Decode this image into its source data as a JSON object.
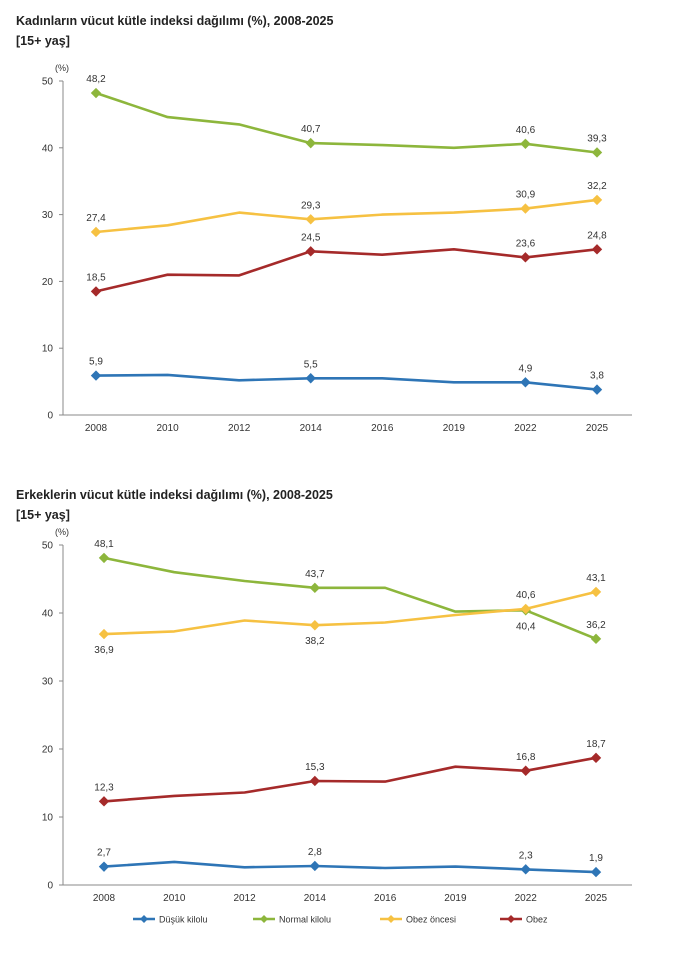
{
  "chart_data": [
    {
      "type": "line",
      "title": "Kadınların vücut kütle indeksi dağılımı (%), 2008-2025",
      "subtitle": "[15+ yaş]",
      "ylabel": "(%)",
      "ylim": [
        0,
        50
      ],
      "yticks": [
        0,
        10,
        20,
        30,
        40,
        50
      ],
      "categories": [
        "2008",
        "2010",
        "2012",
        "2014",
        "2016",
        "2019",
        "2022",
        "2025"
      ],
      "series": [
        {
          "name": "Düşük kilolu",
          "color": "#2e75b6",
          "values": [
            5.9,
            6.0,
            5.2,
            5.5,
            5.5,
            4.9,
            4.9,
            3.8
          ],
          "labels": [
            "5,9",
            "",
            "",
            "5,5",
            "",
            "",
            "4,9",
            "3,8"
          ],
          "label_pos": "above"
        },
        {
          "name": "Normal kilolu",
          "color": "#8db63c",
          "values": [
            48.2,
            44.6,
            43.5,
            40.7,
            40.4,
            40.0,
            40.6,
            39.3
          ],
          "labels": [
            "48,2",
            "",
            "",
            "40,7",
            "",
            "",
            "40,6",
            "39,3"
          ],
          "label_pos": "above"
        },
        {
          "name": "Obez öncesi",
          "color": "#f6c142",
          "values": [
            27.4,
            28.4,
            30.3,
            29.3,
            30.0,
            30.3,
            30.9,
            32.2
          ],
          "labels": [
            "27,4",
            "",
            "",
            "29,3",
            "",
            "",
            "30,9",
            "32,2"
          ],
          "label_pos": "above"
        },
        {
          "name": "Obez",
          "color": "#a52a2a",
          "values": [
            18.5,
            21.0,
            20.9,
            24.5,
            24.0,
            24.8,
            23.6,
            24.8
          ],
          "labels": [
            "18,5",
            "",
            "",
            "24,5",
            "",
            "",
            "23,6",
            "24,8"
          ],
          "label_pos": "above"
        }
      ]
    },
    {
      "type": "line",
      "title": "Erkeklerin vücut kütle indeksi dağılımı (%), 2008-2025",
      "subtitle": "[15+ yaş]",
      "ylabel": "(%)",
      "ylim": [
        0,
        50
      ],
      "yticks": [
        0,
        10,
        20,
        30,
        40,
        50
      ],
      "categories": [
        "2008",
        "2010",
        "2012",
        "2014",
        "2016",
        "2019",
        "2022",
        "2025"
      ],
      "series": [
        {
          "name": "Düşük kilolu",
          "color": "#2e75b6",
          "values": [
            2.7,
            3.4,
            2.6,
            2.8,
            2.5,
            2.7,
            2.3,
            1.9
          ],
          "labels": [
            "2,7",
            "",
            "",
            "2,8",
            "",
            "",
            "2,3",
            "1,9"
          ],
          "label_pos": "above"
        },
        {
          "name": "Normal kilolu",
          "color": "#8db63c",
          "values": [
            48.1,
            46.0,
            44.7,
            43.7,
            43.7,
            40.2,
            40.4,
            36.2
          ],
          "labels": [
            "48,1",
            "",
            "",
            "43,7",
            "",
            "",
            "40,4",
            "36,2"
          ],
          "label_pos": [
            "above",
            "",
            "",
            "above",
            "",
            "",
            "below",
            "above"
          ]
        },
        {
          "name": "Obez öncesi",
          "color": "#f6c142",
          "values": [
            36.9,
            37.3,
            38.9,
            38.2,
            38.6,
            39.7,
            40.6,
            43.1
          ],
          "labels": [
            "36,9",
            "",
            "",
            "38,2",
            "",
            "",
            "40,6",
            "43,1"
          ],
          "label_pos": [
            "below",
            "",
            "",
            "below",
            "",
            "",
            "above",
            "above"
          ]
        },
        {
          "name": "Obez",
          "color": "#a52a2a",
          "values": [
            12.3,
            13.1,
            13.6,
            15.3,
            15.2,
            17.4,
            16.8,
            18.7
          ],
          "labels": [
            "12,3",
            "",
            "",
            "15,3",
            "",
            "",
            "16,8",
            "18,7"
          ],
          "label_pos": "above"
        }
      ]
    }
  ],
  "legend": [
    "Düşük kilolu",
    "Normal kilolu",
    "Obez öncesi",
    "Obez"
  ]
}
